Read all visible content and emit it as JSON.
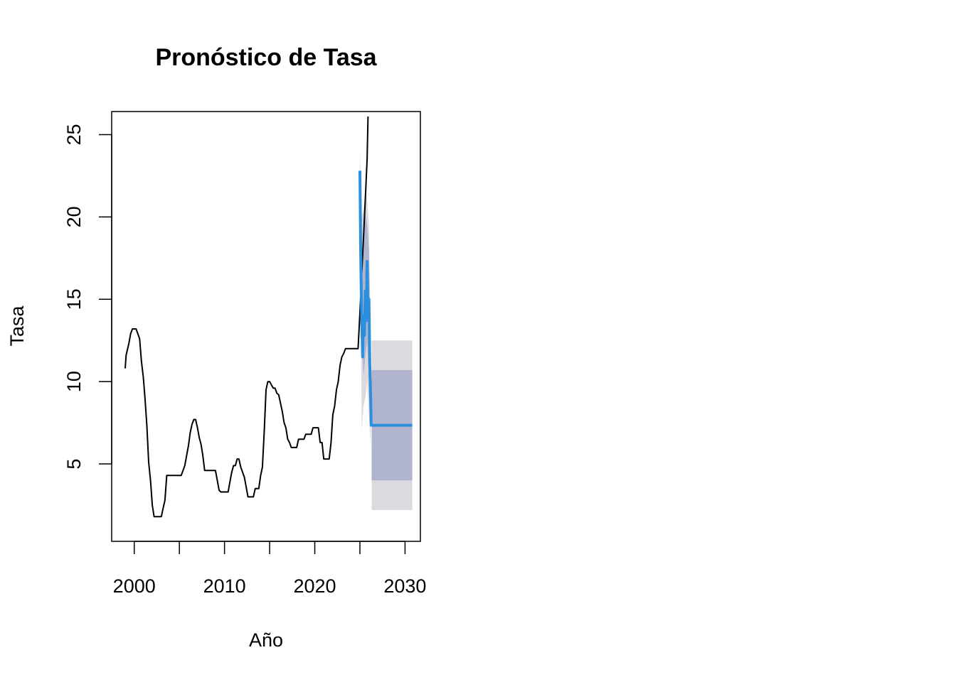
{
  "chart_data": {
    "type": "line",
    "title": "Pronóstico de Tasa",
    "xlabel": "Año",
    "ylabel": "Tasa",
    "xlim": [
      1997.5,
      2031.7
    ],
    "ylim": [
      0.3,
      26.4
    ],
    "x_ticks": [
      2000,
      2010,
      2020,
      2030
    ],
    "y_ticks": [
      5,
      10,
      15,
      20,
      25
    ],
    "grid": false,
    "colors": {
      "history": "#000000",
      "forecast": "#2b8fdc",
      "band_80": "#b0b4cf",
      "band_95": "#dcdae0",
      "axis": "#000000"
    },
    "series": [
      {
        "points": [
          [
            1999.0,
            10.8
          ],
          [
            1999.1,
            11.6
          ],
          [
            1999.4,
            12.3
          ],
          [
            1999.6,
            12.9
          ],
          [
            1999.8,
            13.2
          ],
          [
            2000.2,
            13.2
          ],
          [
            2000.4,
            12.9
          ],
          [
            2000.6,
            12.6
          ],
          [
            2000.8,
            11.2
          ],
          [
            2001.0,
            10.3
          ],
          [
            2001.2,
            8.9
          ],
          [
            2001.4,
            7.3
          ],
          [
            2001.6,
            5.1
          ],
          [
            2001.8,
            4.0
          ],
          [
            2002.0,
            2.5
          ],
          [
            2002.2,
            1.8
          ],
          [
            2003.0,
            1.8
          ],
          [
            2003.2,
            2.3
          ],
          [
            2003.4,
            2.8
          ],
          [
            2003.6,
            4.3
          ],
          [
            2005.2,
            4.3
          ],
          [
            2005.4,
            4.6
          ],
          [
            2005.6,
            4.9
          ],
          [
            2005.8,
            5.5
          ],
          [
            2006.0,
            6.1
          ],
          [
            2006.2,
            6.9
          ],
          [
            2006.4,
            7.4
          ],
          [
            2006.6,
            7.7
          ],
          [
            2006.8,
            7.7
          ],
          [
            2007.0,
            7.2
          ],
          [
            2007.2,
            6.6
          ],
          [
            2007.4,
            6.2
          ],
          [
            2007.6,
            5.5
          ],
          [
            2007.8,
            4.6
          ],
          [
            2009.0,
            4.6
          ],
          [
            2009.2,
            4.0
          ],
          [
            2009.4,
            3.4
          ],
          [
            2009.6,
            3.3
          ],
          [
            2010.4,
            3.3
          ],
          [
            2010.6,
            3.9
          ],
          [
            2010.8,
            4.5
          ],
          [
            2011.0,
            4.9
          ],
          [
            2011.2,
            4.9
          ],
          [
            2011.4,
            5.3
          ],
          [
            2011.6,
            5.3
          ],
          [
            2011.8,
            4.8
          ],
          [
            2012.0,
            4.5
          ],
          [
            2012.2,
            4.2
          ],
          [
            2012.4,
            3.6
          ],
          [
            2012.6,
            3.0
          ],
          [
            2013.2,
            3.0
          ],
          [
            2013.4,
            3.5
          ],
          [
            2013.8,
            3.5
          ],
          [
            2014.0,
            4.3
          ],
          [
            2014.2,
            4.8
          ],
          [
            2014.4,
            7.0
          ],
          [
            2014.6,
            9.5
          ],
          [
            2014.8,
            10.0
          ],
          [
            2015.0,
            10.0
          ],
          [
            2015.2,
            9.8
          ],
          [
            2015.4,
            9.6
          ],
          [
            2015.6,
            9.6
          ],
          [
            2015.8,
            9.3
          ],
          [
            2016.0,
            9.2
          ],
          [
            2016.2,
            8.7
          ],
          [
            2016.4,
            8.2
          ],
          [
            2016.6,
            7.5
          ],
          [
            2016.8,
            7.2
          ],
          [
            2017.0,
            6.5
          ],
          [
            2017.2,
            6.3
          ],
          [
            2017.4,
            6.0
          ],
          [
            2018.0,
            6.0
          ],
          [
            2018.2,
            6.5
          ],
          [
            2018.8,
            6.5
          ],
          [
            2019.0,
            6.8
          ],
          [
            2019.6,
            6.8
          ],
          [
            2019.8,
            7.2
          ],
          [
            2020.4,
            7.2
          ],
          [
            2020.6,
            6.3
          ],
          [
            2020.8,
            6.3
          ],
          [
            2021.0,
            5.3
          ],
          [
            2021.6,
            5.3
          ],
          [
            2021.8,
            6.3
          ],
          [
            2022.0,
            8.0
          ],
          [
            2022.2,
            8.5
          ],
          [
            2022.4,
            9.5
          ],
          [
            2022.6,
            10.0
          ],
          [
            2022.8,
            11.0
          ],
          [
            2023.0,
            11.5
          ],
          [
            2023.2,
            11.7
          ],
          [
            2023.4,
            12.0
          ],
          [
            2024.8,
            12.0
          ],
          [
            2025.0,
            14.2
          ],
          [
            2025.2,
            16.5
          ],
          [
            2025.4,
            18.8
          ],
          [
            2025.6,
            21.1
          ],
          [
            2025.8,
            23.5
          ],
          [
            2025.9,
            26.1
          ]
        ]
      },
      {
        "points": [
          [
            2025.0,
            22.8
          ],
          [
            2025.1,
            17.5
          ],
          [
            2025.2,
            13.6
          ],
          [
            2025.3,
            11.5
          ],
          [
            2025.4,
            14.0
          ],
          [
            2025.5,
            12.8
          ],
          [
            2025.6,
            15.5
          ],
          [
            2025.7,
            13.7
          ],
          [
            2025.8,
            17.3
          ],
          [
            2025.9,
            14.0
          ],
          [
            2026.0,
            15.0
          ],
          [
            2026.1,
            11.0
          ],
          [
            2026.2,
            8.8
          ],
          [
            2026.25,
            7.35
          ],
          [
            2030.8,
            7.35
          ]
        ]
      }
    ],
    "band_80": {
      "spikes": [
        [
          2025.0,
          22.8,
          22.8
        ],
        [
          2025.2,
          12.5,
          15.0
        ],
        [
          2025.4,
          10.3,
          18.0
        ],
        [
          2025.6,
          11.5,
          20.2
        ],
        [
          2025.8,
          12.5,
          19.5
        ],
        [
          2026.0,
          9.8,
          18.0
        ],
        [
          2026.2,
          7.5,
          11.5
        ]
      ],
      "x_range": [
        2026.3,
        2030.8
      ],
      "lower": 4.0,
      "upper": 10.7
    },
    "band_95": {
      "spikes": [
        [
          2025.0,
          22.8,
          24.0
        ],
        [
          2025.2,
          7.0,
          20.0
        ],
        [
          2025.4,
          8.5,
          20.5
        ],
        [
          2025.6,
          9.0,
          21.8
        ],
        [
          2025.8,
          10.0,
          21.0
        ],
        [
          2026.0,
          8.0,
          19.5
        ],
        [
          2026.2,
          6.0,
          12.5
        ]
      ],
      "x_range": [
        2026.3,
        2030.8
      ],
      "lower": 2.2,
      "upper": 12.5
    }
  }
}
